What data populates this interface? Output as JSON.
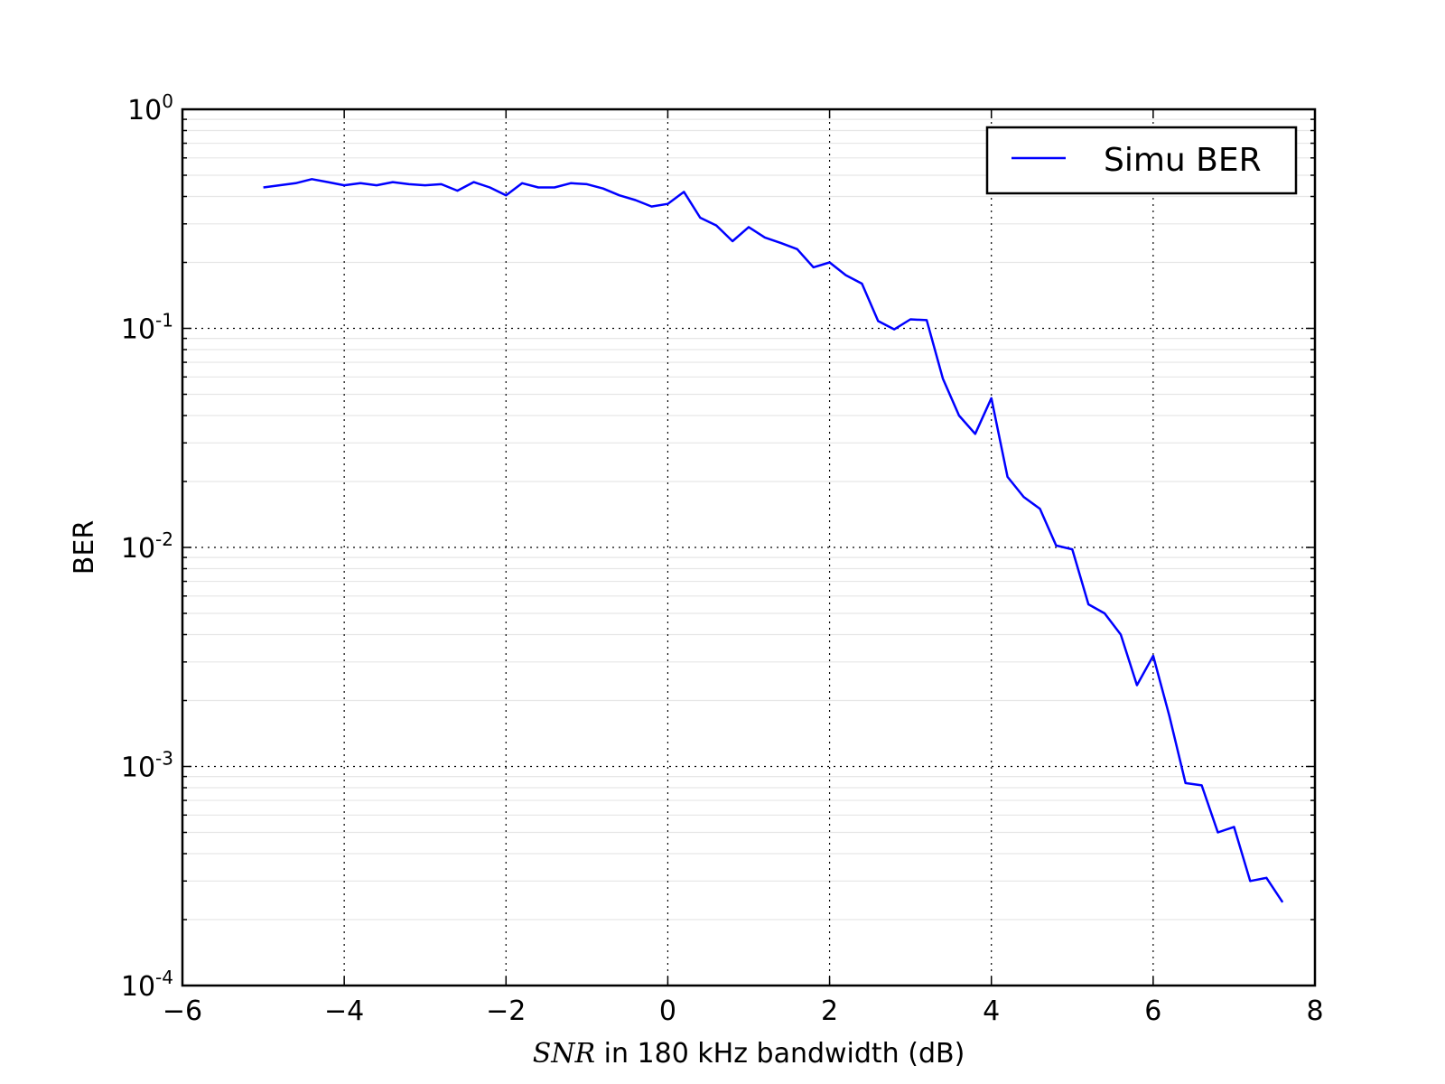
{
  "chart_data": {
    "type": "line",
    "title": "",
    "xlabel": {
      "italic": "SNR",
      "rest": " in 180 kHz bandwidth (dB)"
    },
    "ylabel": "BER",
    "xlim": [
      -6,
      8
    ],
    "ylim": [
      0.0001,
      1
    ],
    "yscale": "log",
    "grid": true,
    "legend_position": "top-right",
    "x_ticks": [
      {
        "value": -6,
        "label": "−6"
      },
      {
        "value": -4,
        "label": "−4"
      },
      {
        "value": -2,
        "label": "−2"
      },
      {
        "value": 0,
        "label": "0"
      },
      {
        "value": 2,
        "label": "2"
      },
      {
        "value": 4,
        "label": "4"
      },
      {
        "value": 6,
        "label": "6"
      },
      {
        "value": 8,
        "label": "8"
      }
    ],
    "y_ticks": [
      {
        "value": 1,
        "base": "10",
        "exp": "0"
      },
      {
        "value": 0.1,
        "base": "10",
        "exp": "-1"
      },
      {
        "value": 0.01,
        "base": "10",
        "exp": "-2"
      },
      {
        "value": 0.001,
        "base": "10",
        "exp": "-3"
      },
      {
        "value": 0.0001,
        "base": "10",
        "exp": "-4"
      }
    ],
    "series": [
      {
        "name": "Simu BER",
        "color": "#0000ff",
        "x": [
          -5.0,
          -4.8,
          -4.6,
          -4.4,
          -4.2,
          -4.0,
          -3.8,
          -3.6,
          -3.4,
          -3.2,
          -3.0,
          -2.8,
          -2.6,
          -2.4,
          -2.2,
          -2.0,
          -1.8,
          -1.6,
          -1.4,
          -1.2,
          -1.0,
          -0.8,
          -0.6,
          -0.4,
          -0.2,
          0.0,
          0.2,
          0.4,
          0.6,
          0.8,
          1.0,
          1.2,
          1.4,
          1.6,
          1.8,
          2.0,
          2.2,
          2.4,
          2.6,
          2.8,
          3.0,
          3.2,
          3.4,
          3.6,
          3.8,
          4.0,
          4.2,
          4.4,
          4.6,
          4.8,
          5.0,
          5.2,
          5.4,
          5.6,
          5.8,
          6.0,
          6.2,
          6.4,
          6.6,
          6.8,
          7.0,
          7.2,
          7.4,
          7.6
        ],
        "values": [
          0.44,
          0.45,
          0.46,
          0.48,
          0.465,
          0.45,
          0.46,
          0.45,
          0.465,
          0.455,
          0.45,
          0.455,
          0.425,
          0.465,
          0.44,
          0.405,
          0.46,
          0.44,
          0.44,
          0.46,
          0.455,
          0.435,
          0.405,
          0.385,
          0.36,
          0.37,
          0.42,
          0.32,
          0.295,
          0.25,
          0.29,
          0.26,
          0.245,
          0.23,
          0.19,
          0.2,
          0.175,
          0.16,
          0.108,
          0.099,
          0.11,
          0.109,
          0.059,
          0.04,
          0.033,
          0.048,
          0.021,
          0.017,
          0.015,
          0.0102,
          0.0098,
          0.0055,
          0.005,
          0.004,
          0.00235,
          0.0032,
          0.0017,
          0.00084,
          0.00082,
          0.0005,
          0.00053,
          0.0003,
          0.00031,
          0.00024
        ]
      }
    ]
  }
}
